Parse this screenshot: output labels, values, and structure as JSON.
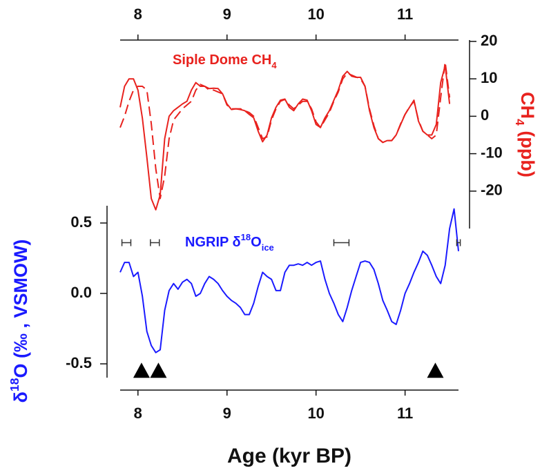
{
  "chart_data": [
    {
      "type": "line",
      "xaxis_side": "top",
      "yaxis_side": "right",
      "annotation": {
        "color": "#e8221e",
        "parts": [
          {
            "text": "Siple Dome CH"
          },
          {
            "text": "4",
            "style": "sub"
          }
        ]
      },
      "ylabel": {
        "color": "#e8221e",
        "parts": [
          {
            "text": "CH"
          },
          {
            "text": "4",
            "style": "sub"
          },
          {
            "text": " (ppb)"
          }
        ]
      },
      "xlim": [
        7.8,
        11.6
      ],
      "xticks": [
        8,
        9,
        10,
        11
      ],
      "ylim": [
        -30,
        20
      ],
      "yticks": [
        -20,
        -10,
        0,
        10,
        20
      ],
      "x": [
        7.8,
        7.85,
        7.9,
        7.95,
        8.0,
        8.05,
        8.1,
        8.15,
        8.2,
        8.25,
        8.3,
        8.35,
        8.4,
        8.45,
        8.5,
        8.55,
        8.6,
        8.65,
        8.7,
        8.75,
        8.8,
        8.85,
        8.9,
        8.95,
        9.0,
        9.05,
        9.1,
        9.15,
        9.2,
        9.25,
        9.3,
        9.35,
        9.4,
        9.45,
        9.5,
        9.55,
        9.6,
        9.65,
        9.7,
        9.75,
        9.8,
        9.85,
        9.9,
        9.95,
        10.0,
        10.05,
        10.1,
        10.15,
        10.2,
        10.25,
        10.3,
        10.35,
        10.4,
        10.45,
        10.5,
        10.55,
        10.6,
        10.65,
        10.7,
        10.75,
        10.8,
        10.85,
        10.9,
        10.95,
        11.0,
        11.05,
        11.1,
        11.15,
        11.2,
        11.25,
        11.3,
        11.35,
        11.4,
        11.45,
        11.5
      ],
      "series": [
        {
          "color": "#e8221e",
          "dash": false,
          "values": [
            2.4,
            8,
            10,
            10,
            7,
            -0.5,
            -11,
            -22,
            -25,
            -21,
            -6,
            0,
            1.5,
            2.4,
            3.3,
            4,
            7,
            9,
            8,
            8,
            7.4,
            7.5,
            7.4,
            6,
            3.3,
            1.8,
            2,
            1.8,
            1.5,
            0.5,
            -0.4,
            -4,
            -6.8,
            -5,
            -0.4,
            2.4,
            4.3,
            4.6,
            2.4,
            1.5,
            3.3,
            4.6,
            4.3,
            1.5,
            -2.2,
            -3,
            -0.4,
            1.5,
            4.3,
            7,
            10.7,
            12,
            10.7,
            10.4,
            10.4,
            8,
            1.5,
            -3,
            -6,
            -7,
            -6.5,
            -6.5,
            -5,
            -2.2,
            0.5,
            2.4,
            4.3,
            -1.3,
            -4,
            -5,
            -5,
            -2.2,
            9,
            13.5,
            3.3
          ]
        },
        {
          "color": "#e8221e",
          "dash": true,
          "values": [
            -3,
            0,
            4,
            7,
            8,
            8,
            7,
            -2,
            -14,
            -22,
            -16,
            -6,
            -1,
            0.5,
            2,
            3,
            4,
            7,
            8.5,
            8,
            7,
            7,
            6.5,
            6,
            3,
            2,
            2,
            2,
            1.5,
            1,
            0,
            -3,
            -6,
            -5.5,
            -1,
            2,
            4,
            4.5,
            3,
            2,
            3,
            4,
            4,
            2,
            -1.5,
            -3,
            -1,
            1,
            4,
            6.5,
            10,
            11.5,
            11,
            10.5,
            10,
            8,
            2,
            -2.5,
            -6,
            -7,
            -6.5,
            -6.5,
            -5,
            -2,
            0.5,
            2.5,
            4,
            -1,
            -4,
            -5,
            -6,
            -5,
            5,
            14.5,
            5
          ]
        }
      ]
    },
    {
      "type": "line",
      "xaxis_side": "bottom",
      "yaxis_side": "left",
      "annotation": {
        "color": "#1a1aff",
        "parts": [
          {
            "text": "NGRIP δ"
          },
          {
            "text": "18",
            "style": "sup"
          },
          {
            "text": "O"
          },
          {
            "text": "ice",
            "style": "sub"
          }
        ]
      },
      "ylabel": {
        "color": "#1a1aff",
        "parts": [
          {
            "text": "δ"
          },
          {
            "text": "18",
            "style": "sup"
          },
          {
            "text": "O (‰ , VSMOW)"
          }
        ]
      },
      "xlabel": "Age (kyr BP)",
      "xlim": [
        7.8,
        11.6
      ],
      "xticks": [
        8,
        9,
        10,
        11
      ],
      "ylim": [
        -0.6,
        0.6
      ],
      "yticks": [
        {
          "value": -0.5,
          "label": "-0.5"
        },
        {
          "value": 0,
          "label": "0.0"
        },
        {
          "value": 0.5,
          "label": "0.5"
        }
      ],
      "x": [
        7.8,
        7.85,
        7.9,
        7.95,
        8.0,
        8.05,
        8.1,
        8.15,
        8.2,
        8.25,
        8.3,
        8.35,
        8.4,
        8.45,
        8.5,
        8.55,
        8.6,
        8.65,
        8.7,
        8.75,
        8.8,
        8.85,
        8.9,
        8.95,
        9.0,
        9.05,
        9.1,
        9.15,
        9.2,
        9.25,
        9.3,
        9.35,
        9.4,
        9.45,
        9.5,
        9.55,
        9.6,
        9.65,
        9.7,
        9.75,
        9.8,
        9.85,
        9.9,
        9.95,
        10.0,
        10.05,
        10.1,
        10.15,
        10.2,
        10.25,
        10.3,
        10.35,
        10.4,
        10.45,
        10.5,
        10.55,
        10.6,
        10.65,
        10.7,
        10.75,
        10.8,
        10.85,
        10.9,
        10.95,
        11.0,
        11.05,
        11.1,
        11.15,
        11.2,
        11.25,
        11.3,
        11.35,
        11.4,
        11.45,
        11.5,
        11.55,
        11.6
      ],
      "series": [
        {
          "color": "#1a1aff",
          "dash": false,
          "values": [
            0.15,
            0.22,
            0.22,
            0.12,
            0.15,
            -0.02,
            -0.27,
            -0.37,
            -0.42,
            -0.4,
            -0.12,
            0.02,
            0.07,
            0.03,
            0.08,
            0.1,
            0.07,
            -0.02,
            0,
            0.07,
            0.12,
            0.1,
            0.07,
            0.02,
            -0.02,
            -0.05,
            -0.07,
            -0.1,
            -0.15,
            -0.15,
            -0.07,
            0.05,
            0.15,
            0.12,
            0.1,
            0.02,
            0.02,
            0.15,
            0.2,
            0.2,
            0.21,
            0.2,
            0.22,
            0.2,
            0.22,
            0.23,
            0.1,
            0,
            -0.07,
            -0.15,
            -0.2,
            -0.1,
            0.02,
            0.12,
            0.22,
            0.23,
            0.22,
            0.17,
            0.07,
            -0.05,
            -0.12,
            -0.2,
            -0.22,
            -0.12,
            0,
            0.07,
            0.15,
            0.22,
            0.3,
            0.27,
            0.2,
            0.12,
            0.07,
            0.2,
            0.46,
            0.6,
            0.3
          ]
        }
      ],
      "age_bars": {
        "y": 0.36,
        "x": [
          [
            7.82,
            7.92
          ],
          [
            8.14,
            8.24
          ],
          [
            10.2,
            10.37
          ],
          [
            11.58,
            11.62
          ]
        ]
      },
      "events": {
        "y": -0.55,
        "x": [
          8.04,
          8.23,
          11.34
        ]
      }
    }
  ]
}
